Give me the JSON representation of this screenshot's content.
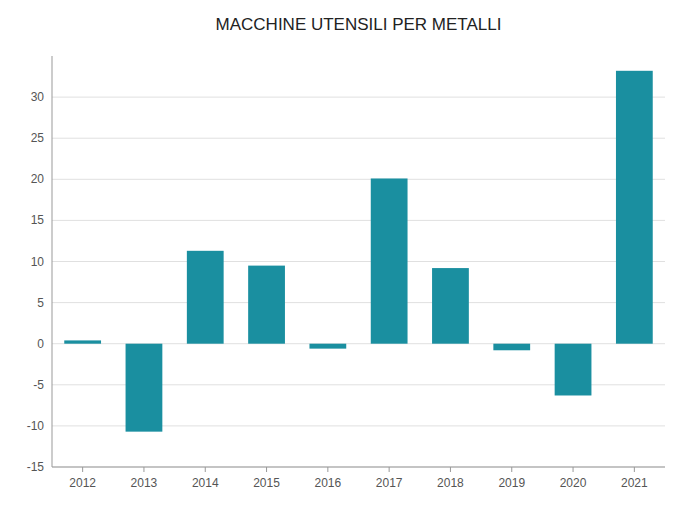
{
  "chart_data": {
    "type": "bar",
    "title": "MACCHINE UTENSILI PER METALLI",
    "categories": [
      2012,
      2013,
      2014,
      2015,
      2016,
      2017,
      2018,
      2019,
      2020,
      2021
    ],
    "values": [
      0.4,
      -10.7,
      11.3,
      9.5,
      -0.6,
      20.1,
      9.2,
      -0.8,
      -6.3,
      33.2
    ],
    "color": "#1a8fa0",
    "ylim": [
      -15,
      35
    ],
    "yticks": [
      -15,
      -10,
      -5,
      0,
      5,
      10,
      15,
      20,
      25,
      30
    ],
    "grid": true
  }
}
